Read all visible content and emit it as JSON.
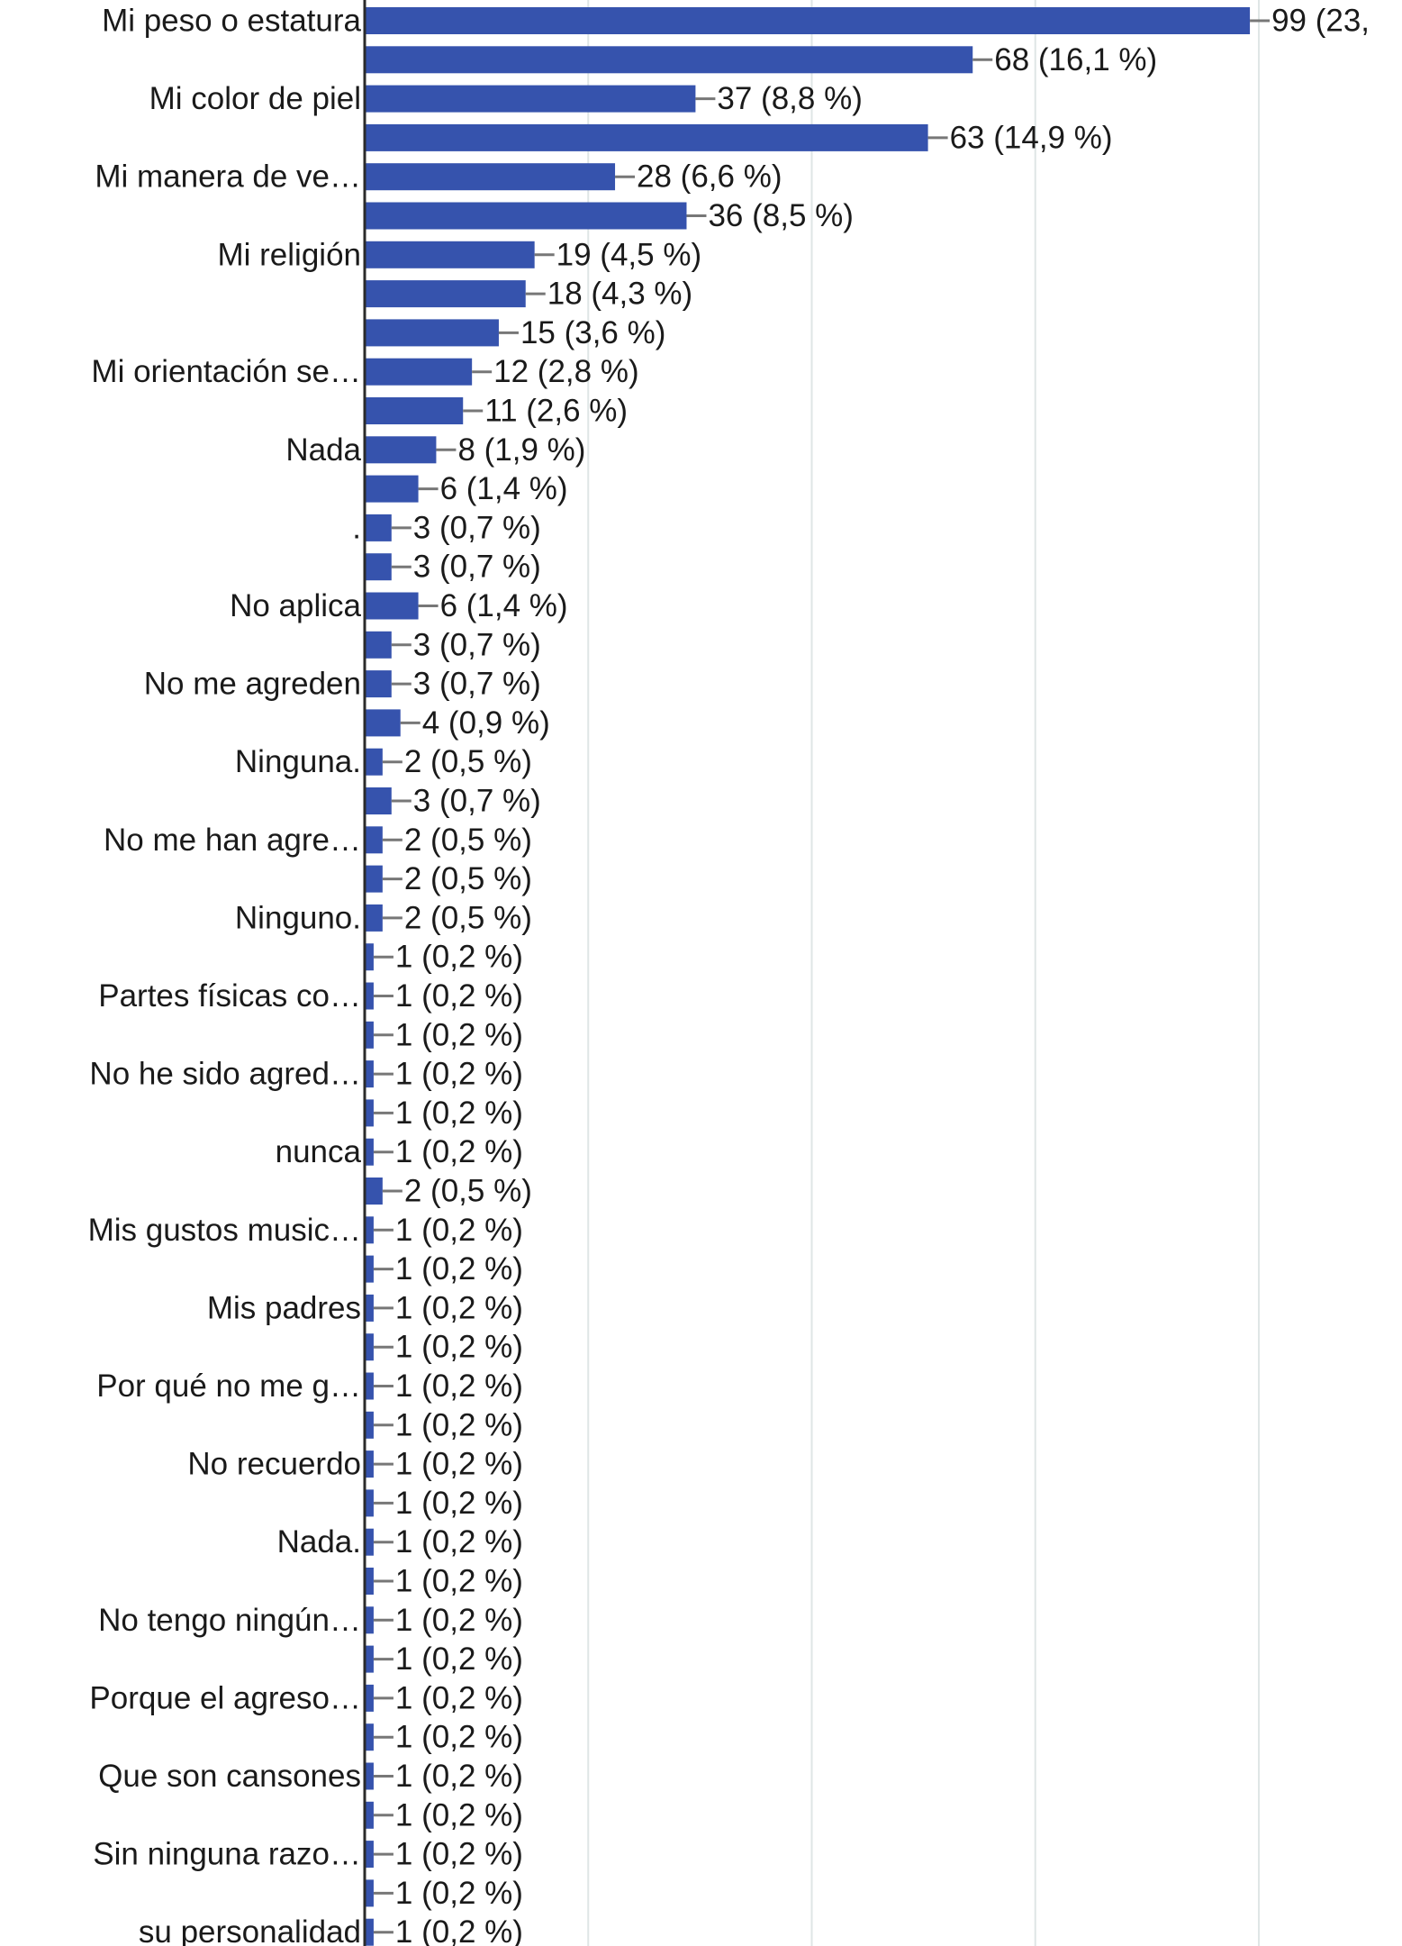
{
  "chart_data": {
    "type": "bar",
    "orientation": "horizontal",
    "grid": true,
    "bar_color": "#3653ad",
    "xlim": [
      0,
      100
    ],
    "gridlines": [
      25,
      50,
      75,
      100
    ],
    "rows": [
      {
        "label": "Mi peso o estatura",
        "value": 99,
        "value_label": "99 (23,"
      },
      {
        "label": "",
        "value": 68,
        "value_label": "68 (16,1 %)"
      },
      {
        "label": "Mi color de piel",
        "value": 37,
        "value_label": "37 (8,8 %)"
      },
      {
        "label": "",
        "value": 63,
        "value_label": "63 (14,9 %)"
      },
      {
        "label": "Mi manera de ve…",
        "value": 28,
        "value_label": "28 (6,6 %)"
      },
      {
        "label": "",
        "value": 36,
        "value_label": "36 (8,5 %)"
      },
      {
        "label": "Mi religión",
        "value": 19,
        "value_label": "19 (4,5 %)"
      },
      {
        "label": "",
        "value": 18,
        "value_label": "18 (4,3 %)"
      },
      {
        "label": "",
        "value": 15,
        "value_label": "15 (3,6 %)"
      },
      {
        "label": "Mi orientación se…",
        "value": 12,
        "value_label": "12 (2,8 %)"
      },
      {
        "label": "",
        "value": 11,
        "value_label": "11 (2,6 %)"
      },
      {
        "label": "Nada",
        "value": 8,
        "value_label": "8 (1,9 %)"
      },
      {
        "label": "",
        "value": 6,
        "value_label": "6 (1,4 %)"
      },
      {
        "label": ".",
        "value": 3,
        "value_label": "3 (0,7 %)"
      },
      {
        "label": "",
        "value": 3,
        "value_label": "3 (0,7 %)"
      },
      {
        "label": "No aplica",
        "value": 6,
        "value_label": "6 (1,4 %)"
      },
      {
        "label": "",
        "value": 3,
        "value_label": "3 (0,7 %)"
      },
      {
        "label": "No me agreden",
        "value": 3,
        "value_label": "3 (0,7 %)"
      },
      {
        "label": "",
        "value": 4,
        "value_label": "4 (0,9 %)"
      },
      {
        "label": "Ninguna.",
        "value": 2,
        "value_label": "2 (0,5 %)"
      },
      {
        "label": "",
        "value": 3,
        "value_label": "3 (0,7 %)"
      },
      {
        "label": "No me han agre…",
        "value": 2,
        "value_label": "2 (0,5 %)"
      },
      {
        "label": "",
        "value": 2,
        "value_label": "2 (0,5 %)"
      },
      {
        "label": "Ninguno.",
        "value": 2,
        "value_label": "2 (0,5 %)"
      },
      {
        "label": "",
        "value": 1,
        "value_label": "1 (0,2 %)"
      },
      {
        "label": "Partes físicas co…",
        "value": 1,
        "value_label": "1 (0,2 %)"
      },
      {
        "label": "",
        "value": 1,
        "value_label": "1 (0,2 %)"
      },
      {
        "label": "No he sido agred…",
        "value": 1,
        "value_label": "1 (0,2 %)"
      },
      {
        "label": "",
        "value": 1,
        "value_label": "1 (0,2 %)"
      },
      {
        "label": "nunca",
        "value": 1,
        "value_label": "1 (0,2 %)"
      },
      {
        "label": "",
        "value": 2,
        "value_label": "2 (0,5 %)"
      },
      {
        "label": "Mis gustos music…",
        "value": 1,
        "value_label": "1 (0,2 %)"
      },
      {
        "label": "",
        "value": 1,
        "value_label": "1 (0,2 %)"
      },
      {
        "label": "Mis padres",
        "value": 1,
        "value_label": "1 (0,2 %)"
      },
      {
        "label": "",
        "value": 1,
        "value_label": "1 (0,2 %)"
      },
      {
        "label": "Por qué no me g…",
        "value": 1,
        "value_label": "1 (0,2 %)"
      },
      {
        "label": "",
        "value": 1,
        "value_label": "1 (0,2 %)"
      },
      {
        "label": "No recuerdo",
        "value": 1,
        "value_label": "1 (0,2 %)"
      },
      {
        "label": "",
        "value": 1,
        "value_label": "1 (0,2 %)"
      },
      {
        "label": "Nada.",
        "value": 1,
        "value_label": "1 (0,2 %)"
      },
      {
        "label": "",
        "value": 1,
        "value_label": "1 (0,2 %)"
      },
      {
        "label": "No tengo ningún…",
        "value": 1,
        "value_label": "1 (0,2 %)"
      },
      {
        "label": "",
        "value": 1,
        "value_label": "1 (0,2 %)"
      },
      {
        "label": "Porque el agreso…",
        "value": 1,
        "value_label": "1 (0,2 %)"
      },
      {
        "label": "",
        "value": 1,
        "value_label": "1 (0,2 %)"
      },
      {
        "label": "Que son cansones",
        "value": 1,
        "value_label": "1 (0,2 %)"
      },
      {
        "label": "",
        "value": 1,
        "value_label": "1 (0,2 %)"
      },
      {
        "label": "Sin ninguna razo…",
        "value": 1,
        "value_label": "1 (0,2 %)"
      },
      {
        "label": "",
        "value": 1,
        "value_label": "1 (0,2 %)"
      },
      {
        "label": "su personalidad",
        "value": 1,
        "value_label": "1 (0,2 %)"
      }
    ]
  }
}
